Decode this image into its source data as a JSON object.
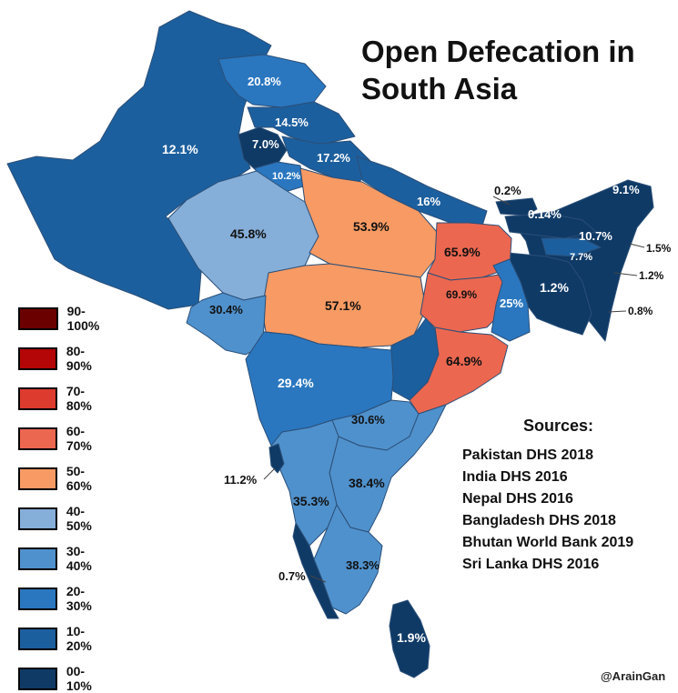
{
  "title": [
    "Open Defecation in",
    "South Asia"
  ],
  "colors": {
    "c90_100": "#6b0000",
    "c80_90": "#b40606",
    "c70_80": "#dd3b2e",
    "c60_70": "#ec6750",
    "c50_60": "#f79a63",
    "c40_50": "#85aed8",
    "c30_40": "#4f91cc",
    "c20_30": "#2a77c0",
    "c10_20": "#1c5f9e",
    "c00_10": "#0f3a66"
  },
  "legend": [
    {
      "label": "90-100%",
      "color": "#6b0000"
    },
    {
      "label": "80-90%",
      "color": "#b40606"
    },
    {
      "label": "70-80%",
      "color": "#dd3b2e"
    },
    {
      "label": "60-70%",
      "color": "#ec6750"
    },
    {
      "label": "50-60%",
      "color": "#f79a63"
    },
    {
      "label": "40-50%",
      "color": "#85aed8"
    },
    {
      "label": "30-40%",
      "color": "#4f91cc"
    },
    {
      "label": "20-30%",
      "color": "#2a77c0"
    },
    {
      "label": "10-20%",
      "color": "#1c5f9e"
    },
    {
      "label": "00-10%",
      "color": "#0f3a66"
    }
  ],
  "sources": {
    "heading": "Sources:",
    "items": [
      "Pakistan DHS 2018",
      "India DHS 2016",
      "Nepal DHS 2016",
      "Bangladesh DHS 2018",
      "Bhutan World Bank 2019",
      "Sri Lanka DHS 2016"
    ]
  },
  "credit": "@ArainGan",
  "map_labels": {
    "pakistan": "12.1%",
    "gilgit_baltistan": "20.8%",
    "jammu_kashmir": "14.5%",
    "punjab_india": "7.0%",
    "haryana": "10.2%",
    "himachal": "17.2%",
    "nepal": "16%",
    "bhutan": "0.2%",
    "arunachal": "9.1%",
    "assam": "0.14%",
    "meghalaya": "10.7%",
    "nagaland": "1.5%",
    "manipur": "1.2%",
    "mizoram": "0.8%",
    "tripura": "7.7%",
    "bangladesh": "1.2%",
    "rajasthan": "45.8%",
    "uttar_pradesh": "53.9%",
    "bihar": "65.9%",
    "jharkhand": "69.9%",
    "west_bengal": "25%",
    "madhya_pradesh": "57.1%",
    "gujarat": "30.4%",
    "odisha": "64.9%",
    "maharashtra": "29.4%",
    "telangana": "30.6%",
    "goa": "11.2%",
    "karnataka": "35.3%",
    "andhra_pradesh": "38.4%",
    "tamil_nadu": "38.3%",
    "kerala": "0.7%",
    "sri_lanka": "1.9%"
  }
}
